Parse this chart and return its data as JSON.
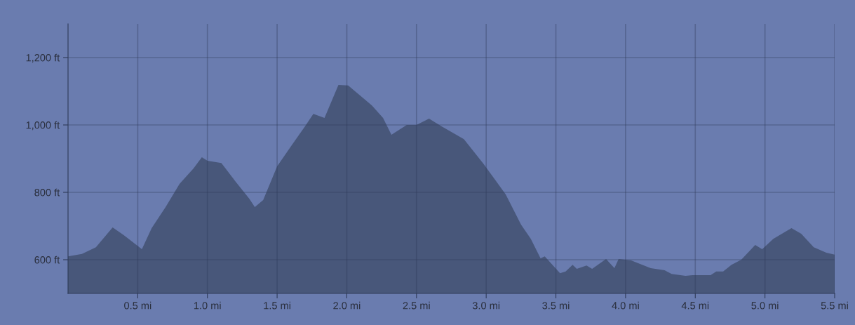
{
  "chart_data": {
    "type": "area",
    "x": [
      0.0,
      0.1,
      0.2,
      0.32,
      0.4,
      0.53,
      0.6,
      0.7,
      0.8,
      0.9,
      0.96,
      1.0,
      1.1,
      1.2,
      1.3,
      1.34,
      1.4,
      1.5,
      1.6,
      1.7,
      1.76,
      1.84,
      1.94,
      2.01,
      2.18,
      2.26,
      2.32,
      2.43,
      2.5,
      2.59,
      2.68,
      2.84,
      2.98,
      3.14,
      3.25,
      3.32,
      3.39,
      3.42,
      3.53,
      3.57,
      3.62,
      3.65,
      3.72,
      3.76,
      3.86,
      3.92,
      3.95,
      4.04,
      4.18,
      4.28,
      4.33,
      4.43,
      4.48,
      4.61,
      4.65,
      4.7,
      4.76,
      4.83,
      4.93,
      4.98,
      5.06,
      5.19,
      5.26,
      5.35,
      5.44,
      5.5
    ],
    "series": [
      {
        "color": "#48577a",
        "values": [
          610,
          617,
          637,
          696,
          673,
          631,
          694,
          756,
          825,
          871,
          904,
          894,
          887,
          833,
          781,
          756,
          777,
          877,
          937,
          996,
          1033,
          1021,
          1119,
          1117,
          1058,
          1021,
          971,
          1000,
          1000,
          1019,
          996,
          958,
          885,
          794,
          704,
          662,
          604,
          610,
          560,
          565,
          585,
          573,
          583,
          573,
          602,
          575,
          602,
          598,
          575,
          569,
          558,
          552,
          554,
          554,
          565,
          565,
          585,
          600,
          644,
          631,
          662,
          694,
          677,
          637,
          621,
          615
        ]
      }
    ],
    "xlim": [
      0,
      5.5
    ],
    "xticks": [
      {
        "value": 0.5,
        "label": "0.5 mi"
      },
      {
        "value": 1.0,
        "label": "1.0 mi"
      },
      {
        "value": 1.5,
        "label": "1.5 mi"
      },
      {
        "value": 2.0,
        "label": "2.0 mi"
      },
      {
        "value": 2.5,
        "label": "2.5 mi"
      },
      {
        "value": 3.0,
        "label": "3.0 mi"
      },
      {
        "value": 3.5,
        "label": "3.5 mi"
      },
      {
        "value": 4.0,
        "label": "4.0 mi"
      },
      {
        "value": 4.5,
        "label": "4.5 mi"
      },
      {
        "value": 5.0,
        "label": "5.0 mi"
      },
      {
        "value": 5.5,
        "label": "5.5 mi"
      }
    ],
    "ylim": [
      500,
      1300
    ],
    "yticks": [
      {
        "value": 600,
        "label": "600 ft"
      },
      {
        "value": 800,
        "label": "800 ft"
      },
      {
        "value": 1000,
        "label": "1,000 ft"
      },
      {
        "value": 1200,
        "label": "1,200 ft"
      }
    ],
    "grid": true
  }
}
